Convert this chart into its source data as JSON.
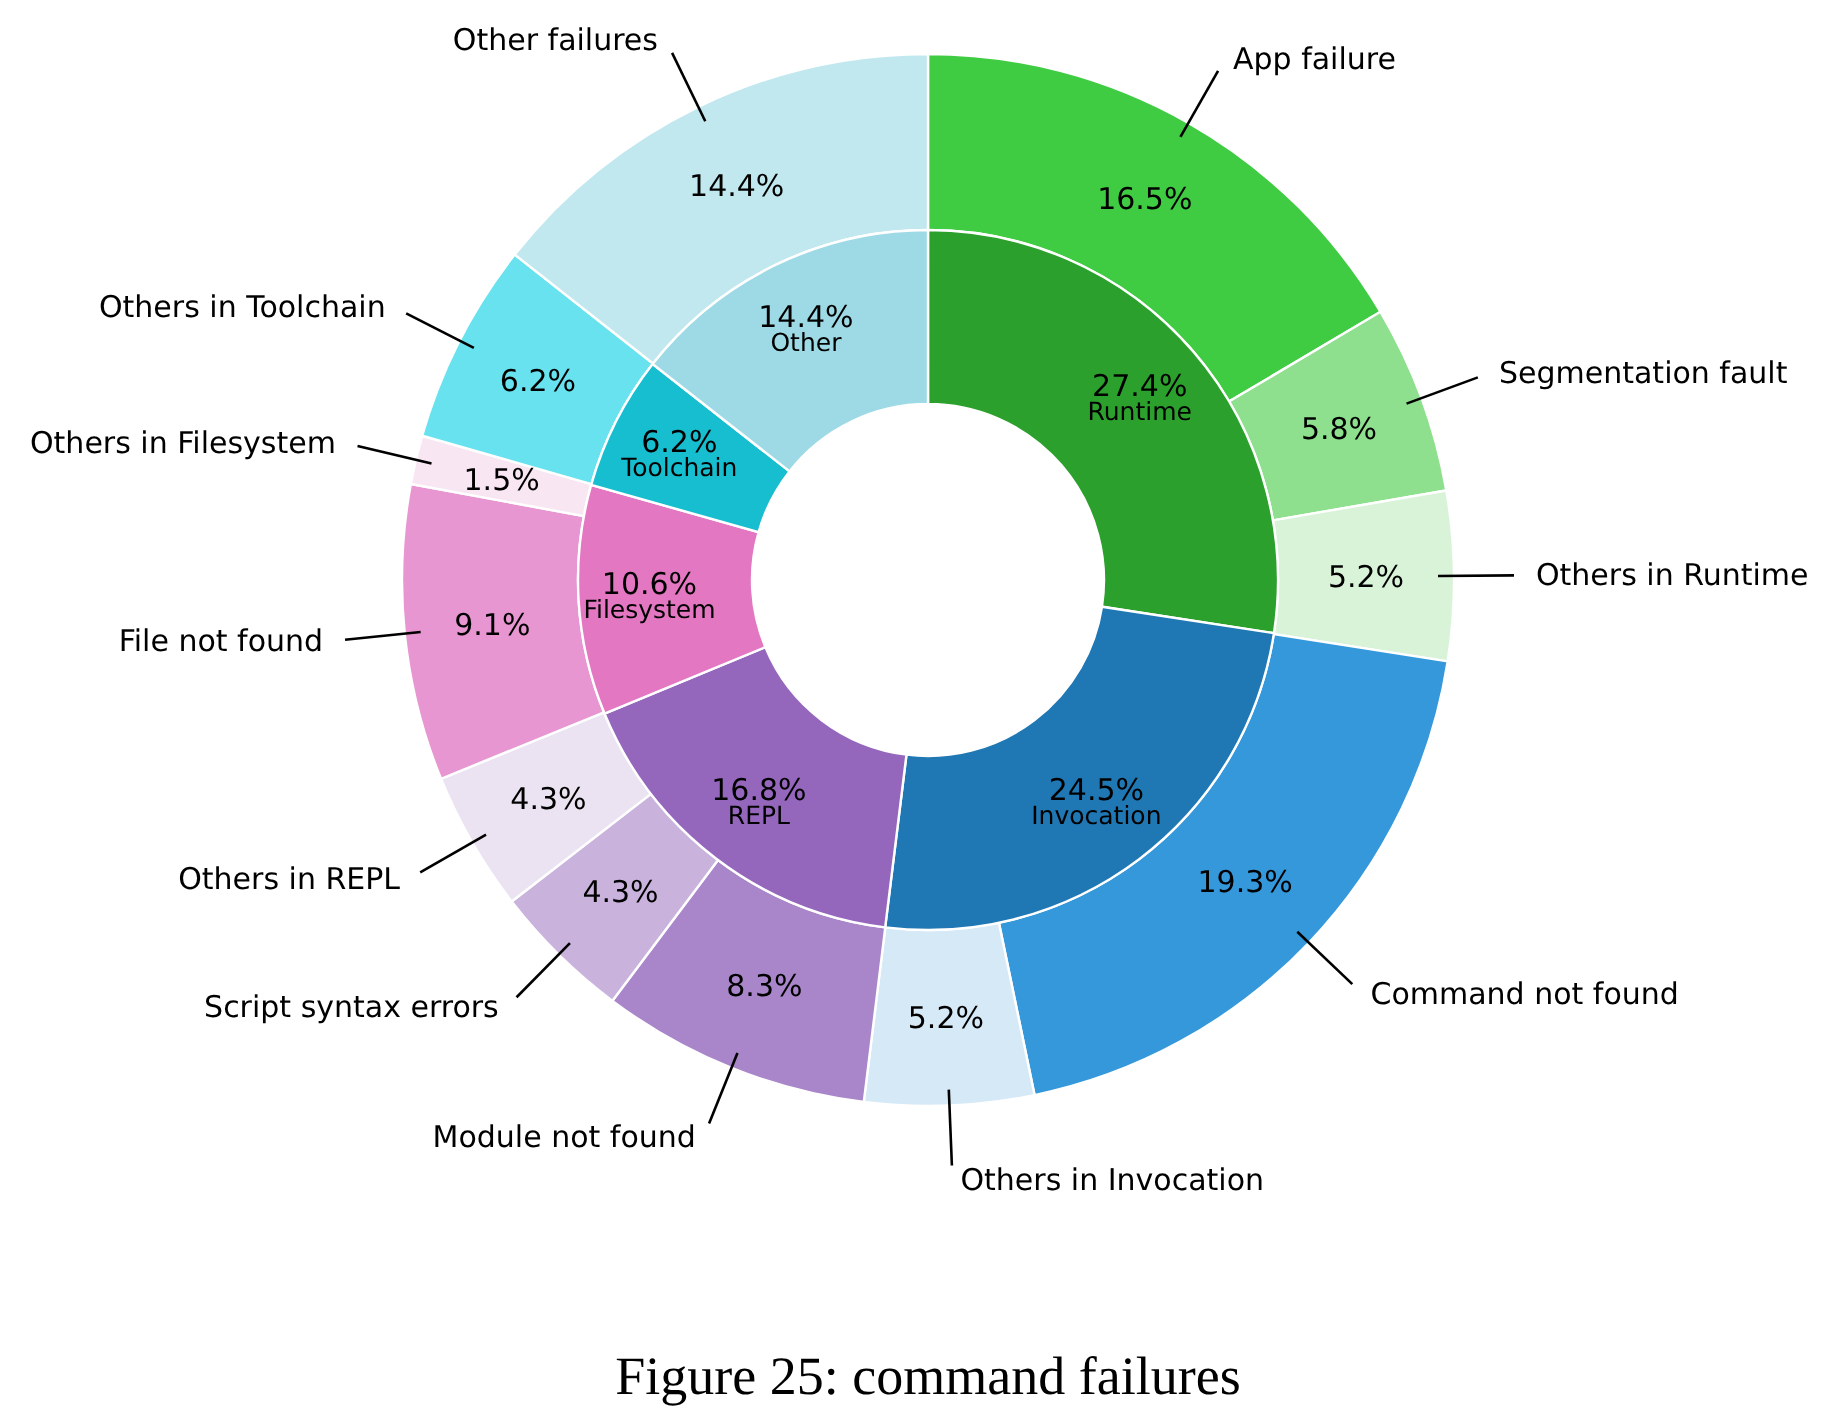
{
  "chart_data": [
    {
      "type": "donut",
      "categories": [
        "Runtime",
        "Invocation",
        "REPL",
        "Filesystem",
        "Toolchain",
        "Other"
      ],
      "values": [
        27.4,
        24.5,
        16.8,
        10.6,
        6.2,
        14.4
      ],
      "value_labels": [
        "27.4%",
        "24.5%",
        "16.8%",
        "10.6%",
        "6.2%",
        "14.4%"
      ],
      "colors": [
        "#2ca02c",
        "#1f77b4",
        "#9467bd",
        "#e377c2",
        "#17becf",
        "#9edae5"
      ]
    },
    {
      "type": "donut",
      "title": "Figure 25: command failures",
      "categories": [
        "App failure",
        "Segmentation fault",
        "Others in Runtime",
        "Command not found",
        "Others in Invocation",
        "Module not found",
        "Script syntax errors",
        "Others in REPL",
        "File not found",
        "Others in Filesystem",
        "Others in Toolchain",
        "Other failures"
      ],
      "values": [
        16.5,
        5.8,
        5.2,
        19.3,
        5.2,
        8.3,
        4.3,
        4.3,
        9.1,
        1.5,
        6.2,
        14.4
      ],
      "value_labels": [
        "16.5%",
        "5.8%",
        "5.2%",
        "19.3%",
        "5.2%",
        "8.3%",
        "4.3%",
        "4.3%",
        "9.1%",
        "1.5%",
        "6.2%",
        "14.4%"
      ],
      "colors": [
        "#3fcb42",
        "#8ee08e",
        "#d9f3d9",
        "#3498db",
        "#d6e9f7",
        "#a886c9",
        "#c9b3dd",
        "#ebe3f1",
        "#e796d1",
        "#f9e6f3",
        "#67e2ee",
        "#c2e8ef"
      ]
    }
  ]
}
